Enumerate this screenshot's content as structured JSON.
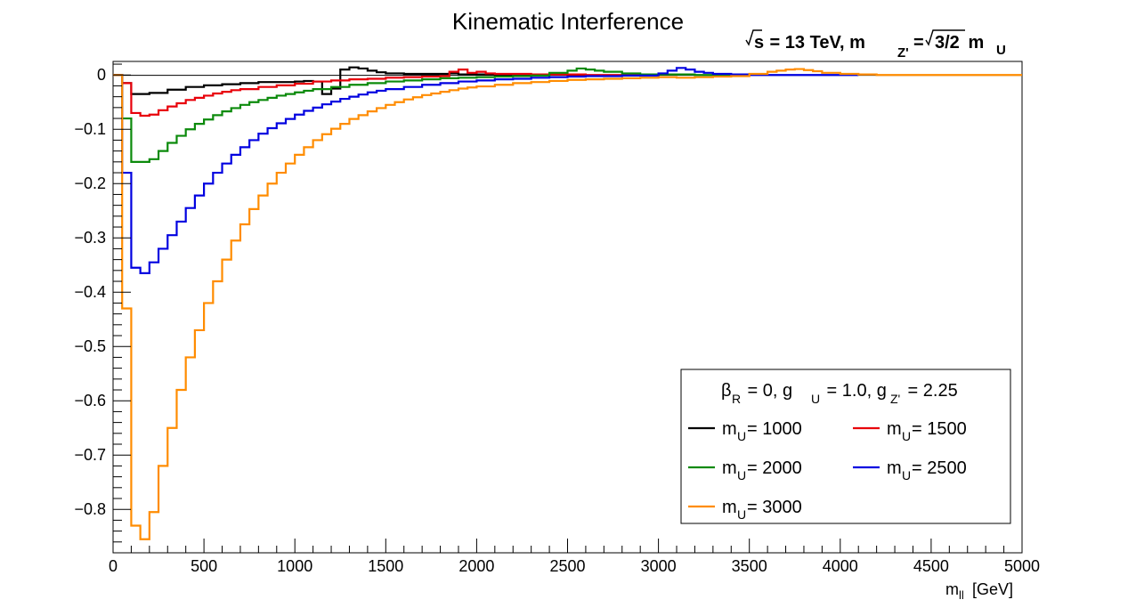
{
  "chart_data": {
    "type": "line",
    "title": "Kinematic Interference",
    "xlabel": "[GeV]",
    "xlabel_symbol": "m",
    "xlabel_subscript": "ll",
    "ylabel": "",
    "xlim": [
      0,
      5000
    ],
    "ylim": [
      -0.88,
      0.025
    ],
    "grid": false,
    "legend_position": "bottom-right",
    "x_ticks": [
      0,
      500,
      1000,
      1500,
      2000,
      2500,
      3000,
      3500,
      4000,
      4500,
      5000
    ],
    "x_tick_labels": [
      "0",
      "500",
      "1000",
      "1500",
      "2000",
      "2500",
      "3000",
      "3500",
      "4000",
      "4500",
      "5000"
    ],
    "y_ticks": [
      0,
      -0.1,
      -0.2,
      -0.3,
      -0.4,
      -0.5,
      -0.6,
      -0.7,
      -0.8
    ],
    "y_tick_labels": [
      "0",
      "−0.1",
      "−0.2",
      "−0.3",
      "−0.4",
      "−0.5",
      "−0.6",
      "−0.7",
      "−0.8"
    ],
    "subtitle": {
      "sqrt_s": "s",
      "part1": " = 13 TeV, m",
      "sub1": "Z'",
      "part2": "= ",
      "sqrt_arg": "3/2",
      "part3": " m",
      "sub2": "U"
    },
    "legend_header": {
      "beta": "β",
      "beta_sub": "R",
      "t1": " = 0, g",
      "g_sub": "U",
      "t2": " = 1.0, g",
      "gz_sub": "Z'",
      "t3": " = 2.25"
    },
    "series": [
      {
        "name": "m_U = 1000",
        "label_main": "m",
        "label_sub": "U",
        "label_value": " = 1000",
        "color": "#000000",
        "points": [
          [
            0,
            0
          ],
          [
            50,
            -0.015
          ],
          [
            100,
            -0.035
          ],
          [
            200,
            -0.033
          ],
          [
            300,
            -0.027
          ],
          [
            400,
            -0.022
          ],
          [
            500,
            -0.019
          ],
          [
            600,
            -0.017
          ],
          [
            700,
            -0.015
          ],
          [
            800,
            -0.013
          ],
          [
            900,
            -0.013
          ],
          [
            1000,
            -0.012
          ],
          [
            1050,
            -0.011
          ],
          [
            1100,
            -0.012
          ],
          [
            1150,
            -0.035
          ],
          [
            1200,
            -0.025
          ],
          [
            1250,
            0.01
          ],
          [
            1300,
            0.014
          ],
          [
            1350,
            0.012
          ],
          [
            1400,
            0.008
          ],
          [
            1450,
            0.005
          ],
          [
            1500,
            0.003
          ],
          [
            1600,
            0.002
          ],
          [
            1700,
            0.002
          ],
          [
            1800,
            0.002
          ],
          [
            1850,
            0.003
          ],
          [
            1900,
            0.001
          ],
          [
            2000,
            0.001
          ],
          [
            2200,
            0.001
          ],
          [
            2500,
            0.0
          ]
        ],
        "x_end": 2500
      },
      {
        "name": "m_U = 1500",
        "label_main": "m",
        "label_sub": "U",
        "label_value": " = 1500",
        "color": "#e8000a",
        "points": [
          [
            0,
            0
          ],
          [
            50,
            -0.015
          ],
          [
            100,
            -0.07
          ],
          [
            150,
            -0.075
          ],
          [
            200,
            -0.073
          ],
          [
            250,
            -0.065
          ],
          [
            300,
            -0.058
          ],
          [
            350,
            -0.052
          ],
          [
            400,
            -0.046
          ],
          [
            450,
            -0.042
          ],
          [
            500,
            -0.038
          ],
          [
            550,
            -0.034
          ],
          [
            600,
            -0.031
          ],
          [
            650,
            -0.028
          ],
          [
            700,
            -0.026
          ],
          [
            800,
            -0.022
          ],
          [
            900,
            -0.019
          ],
          [
            1000,
            -0.016
          ],
          [
            1100,
            -0.012
          ],
          [
            1200,
            -0.01
          ],
          [
            1300,
            -0.008
          ],
          [
            1400,
            -0.007
          ],
          [
            1500,
            -0.005
          ],
          [
            1600,
            -0.004
          ],
          [
            1700,
            -0.003
          ],
          [
            1800,
            -0.002
          ],
          [
            1850,
            0.006
          ],
          [
            1900,
            0.01
          ],
          [
            1950,
            0.004
          ],
          [
            2000,
            0.006
          ],
          [
            2050,
            0.003
          ],
          [
            2100,
            0.002
          ],
          [
            2300,
            0.001
          ],
          [
            2600,
            0.0
          ]
        ],
        "x_end": 3000
      },
      {
        "name": "m_U = 2000",
        "label_main": "m",
        "label_sub": "U",
        "label_value": " = 2000",
        "color": "#0b8a0b",
        "points": [
          [
            0,
            0
          ],
          [
            50,
            -0.08
          ],
          [
            100,
            -0.16
          ],
          [
            150,
            -0.16
          ],
          [
            200,
            -0.155
          ],
          [
            250,
            -0.14
          ],
          [
            300,
            -0.125
          ],
          [
            350,
            -0.112
          ],
          [
            400,
            -0.1
          ],
          [
            450,
            -0.09
          ],
          [
            500,
            -0.082
          ],
          [
            550,
            -0.074
          ],
          [
            600,
            -0.067
          ],
          [
            650,
            -0.061
          ],
          [
            700,
            -0.055
          ],
          [
            750,
            -0.05
          ],
          [
            800,
            -0.046
          ],
          [
            850,
            -0.042
          ],
          [
            900,
            -0.038
          ],
          [
            950,
            -0.035
          ],
          [
            1000,
            -0.032
          ],
          [
            1050,
            -0.029
          ],
          [
            1100,
            -0.026
          ],
          [
            1200,
            -0.022
          ],
          [
            1300,
            -0.018
          ],
          [
            1400,
            -0.015
          ],
          [
            1500,
            -0.012
          ],
          [
            1600,
            -0.01
          ],
          [
            1700,
            -0.008
          ],
          [
            1800,
            -0.006
          ],
          [
            1900,
            -0.005
          ],
          [
            2000,
            -0.004
          ],
          [
            2100,
            -0.003
          ],
          [
            2200,
            -0.002
          ],
          [
            2300,
            -0.001
          ],
          [
            2400,
            0.004
          ],
          [
            2500,
            0.008
          ],
          [
            2550,
            0.012
          ],
          [
            2600,
            0.01
          ],
          [
            2650,
            0.008
          ],
          [
            2700,
            0.006
          ],
          [
            2800,
            0.003
          ],
          [
            2900,
            0.001
          ],
          [
            3000,
            0.001
          ],
          [
            3200,
            0.0
          ]
        ],
        "x_end": 3500
      },
      {
        "name": "m_U = 2500",
        "label_main": "m",
        "label_sub": "U",
        "label_value": " = 2500",
        "color": "#0000e0",
        "points": [
          [
            0,
            0
          ],
          [
            50,
            -0.18
          ],
          [
            100,
            -0.355
          ],
          [
            150,
            -0.365
          ],
          [
            200,
            -0.345
          ],
          [
            250,
            -0.32
          ],
          [
            300,
            -0.295
          ],
          [
            350,
            -0.27
          ],
          [
            400,
            -0.245
          ],
          [
            450,
            -0.222
          ],
          [
            500,
            -0.2
          ],
          [
            550,
            -0.18
          ],
          [
            600,
            -0.163
          ],
          [
            650,
            -0.147
          ],
          [
            700,
            -0.133
          ],
          [
            750,
            -0.12
          ],
          [
            800,
            -0.108
          ],
          [
            850,
            -0.098
          ],
          [
            900,
            -0.089
          ],
          [
            950,
            -0.081
          ],
          [
            1000,
            -0.073
          ],
          [
            1050,
            -0.066
          ],
          [
            1100,
            -0.06
          ],
          [
            1150,
            -0.054
          ],
          [
            1200,
            -0.049
          ],
          [
            1250,
            -0.044
          ],
          [
            1300,
            -0.04
          ],
          [
            1350,
            -0.036
          ],
          [
            1400,
            -0.032
          ],
          [
            1450,
            -0.029
          ],
          [
            1500,
            -0.026
          ],
          [
            1600,
            -0.022
          ],
          [
            1700,
            -0.018
          ],
          [
            1800,
            -0.015
          ],
          [
            1900,
            -0.012
          ],
          [
            2000,
            -0.01
          ],
          [
            2100,
            -0.008
          ],
          [
            2200,
            -0.007
          ],
          [
            2300,
            -0.005
          ],
          [
            2400,
            -0.004
          ],
          [
            2500,
            -0.003
          ],
          [
            2600,
            -0.002
          ],
          [
            2800,
            -0.001
          ],
          [
            3000,
            0.003
          ],
          [
            3050,
            0.008
          ],
          [
            3100,
            0.013
          ],
          [
            3150,
            0.01
          ],
          [
            3200,
            0.006
          ],
          [
            3250,
            0.004
          ],
          [
            3300,
            0.002
          ],
          [
            3400,
            0.001
          ],
          [
            3500,
            0.0
          ]
        ],
        "x_end": 4100
      },
      {
        "name": "m_U = 3000",
        "label_main": "m",
        "label_sub": "U",
        "label_value": " = 3000",
        "color": "#ff8c00",
        "points": [
          [
            0,
            0
          ],
          [
            50,
            -0.43
          ],
          [
            100,
            -0.83
          ],
          [
            150,
            -0.855
          ],
          [
            200,
            -0.805
          ],
          [
            250,
            -0.72
          ],
          [
            300,
            -0.65
          ],
          [
            350,
            -0.58
          ],
          [
            400,
            -0.52
          ],
          [
            450,
            -0.47
          ],
          [
            500,
            -0.42
          ],
          [
            550,
            -0.38
          ],
          [
            600,
            -0.34
          ],
          [
            650,
            -0.305
          ],
          [
            700,
            -0.275
          ],
          [
            750,
            -0.247
          ],
          [
            800,
            -0.222
          ],
          [
            850,
            -0.2
          ],
          [
            900,
            -0.18
          ],
          [
            950,
            -0.163
          ],
          [
            1000,
            -0.147
          ],
          [
            1050,
            -0.133
          ],
          [
            1100,
            -0.12
          ],
          [
            1150,
            -0.109
          ],
          [
            1200,
            -0.099
          ],
          [
            1250,
            -0.09
          ],
          [
            1300,
            -0.081
          ],
          [
            1350,
            -0.074
          ],
          [
            1400,
            -0.067
          ],
          [
            1450,
            -0.061
          ],
          [
            1500,
            -0.055
          ],
          [
            1550,
            -0.05
          ],
          [
            1600,
            -0.045
          ],
          [
            1650,
            -0.041
          ],
          [
            1700,
            -0.037
          ],
          [
            1750,
            -0.034
          ],
          [
            1800,
            -0.031
          ],
          [
            1850,
            -0.028
          ],
          [
            1900,
            -0.025
          ],
          [
            1950,
            -0.023
          ],
          [
            2000,
            -0.021
          ],
          [
            2100,
            -0.018
          ],
          [
            2200,
            -0.015
          ],
          [
            2300,
            -0.013
          ],
          [
            2400,
            -0.011
          ],
          [
            2500,
            -0.009
          ],
          [
            2600,
            -0.008
          ],
          [
            2700,
            -0.007
          ],
          [
            2800,
            -0.006
          ],
          [
            2900,
            -0.005
          ],
          [
            3000,
            -0.004
          ],
          [
            3100,
            -0.005
          ],
          [
            3200,
            -0.004
          ],
          [
            3300,
            -0.003
          ],
          [
            3400,
            -0.002
          ],
          [
            3500,
            0.002
          ],
          [
            3600,
            0.006
          ],
          [
            3650,
            0.008
          ],
          [
            3700,
            0.01
          ],
          [
            3750,
            0.011
          ],
          [
            3800,
            0.009
          ],
          [
            3850,
            0.007
          ],
          [
            3900,
            0.004
          ],
          [
            4000,
            0.002
          ],
          [
            4100,
            0.001
          ],
          [
            4200,
            0.0
          ]
        ],
        "x_end": 5000
      }
    ]
  }
}
